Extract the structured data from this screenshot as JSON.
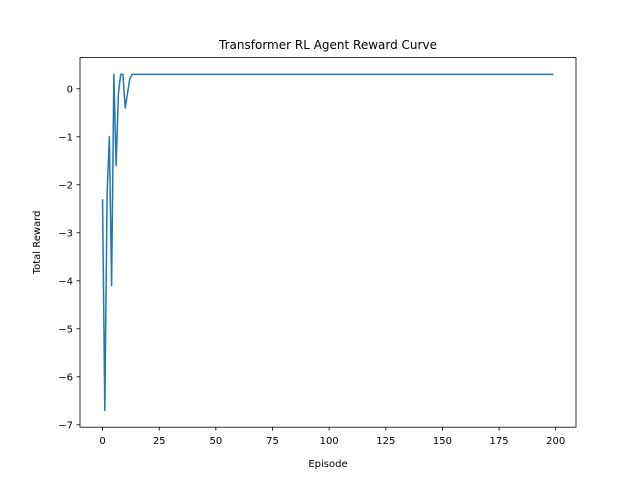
{
  "chart_data": {
    "type": "line",
    "title": "Transformer RL Agent Reward Curve",
    "xlabel": "Episode",
    "ylabel": "Total Reward",
    "xlim": [
      -9.95,
      208.95
    ],
    "ylim": [
      -7.05,
      0.65
    ],
    "xticks": [
      0,
      25,
      50,
      75,
      100,
      125,
      150,
      175,
      200
    ],
    "yticks": [
      0,
      -1,
      -2,
      -3,
      -4,
      -5,
      -6,
      -7
    ],
    "grid": false,
    "line_color": "#1f77b4",
    "series": [
      {
        "x": [
          0,
          1,
          2,
          3,
          4,
          5,
          6,
          7,
          8,
          9,
          10,
          11,
          12,
          13,
          199
        ],
        "y": [
          -2.3,
          -6.7,
          -2.2,
          -1.0,
          -4.1,
          0.3,
          -1.6,
          -0.1,
          0.3,
          0.3,
          -0.4,
          -0.1,
          0.2,
          0.3,
          0.3
        ]
      }
    ]
  }
}
